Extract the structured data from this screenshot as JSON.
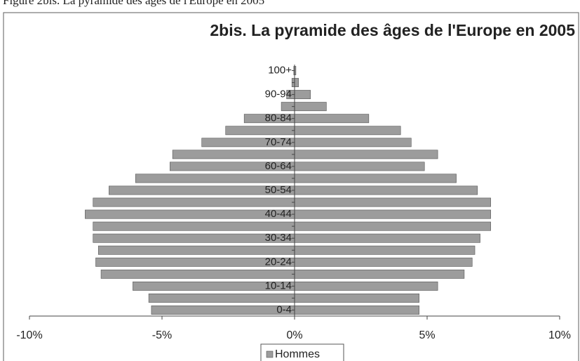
{
  "caption": "Figure 2bis. La pyramide des âges de l'Europe en 2005",
  "chart_data": {
    "type": "pyramid",
    "title": "2bis. La pyramide des âges de l'Europe en 2005",
    "categories": [
      "0-4",
      null,
      "10-14",
      null,
      "20-24",
      null,
      "30-34",
      null,
      "40-44",
      null,
      "50-54",
      null,
      "60-64",
      null,
      "70-74",
      null,
      "80-84",
      null,
      "90-94",
      null,
      "100+"
    ],
    "series": [
      {
        "name": "Hommes",
        "color": "#9c9c9c",
        "values": [
          -5.4,
          -5.5,
          -6.1,
          -7.3,
          -7.5,
          -7.4,
          -7.6,
          -7.6,
          -7.9,
          -7.6,
          -7.0,
          -6.0,
          -4.7,
          -4.6,
          -3.5,
          -2.6,
          -1.9,
          -0.5,
          -0.3,
          -0.1,
          -0.03
        ]
      },
      {
        "color": "#9c9c9c",
        "values": [
          4.7,
          4.7,
          5.4,
          6.4,
          6.7,
          6.8,
          7.0,
          7.4,
          7.4,
          7.4,
          6.9,
          6.1,
          4.9,
          5.4,
          4.4,
          4.0,
          2.8,
          1.2,
          0.6,
          0.15,
          0.05
        ]
      }
    ],
    "xlim": [
      -10,
      10
    ],
    "xticks": [
      {
        "value": -10,
        "label": "-10%"
      },
      {
        "value": -5,
        "label": "-5%"
      },
      {
        "value": 0,
        "label": "0%"
      },
      {
        "value": 5,
        "label": "5%"
      },
      {
        "value": 10,
        "label": "10%"
      }
    ],
    "legend": "bottom"
  }
}
